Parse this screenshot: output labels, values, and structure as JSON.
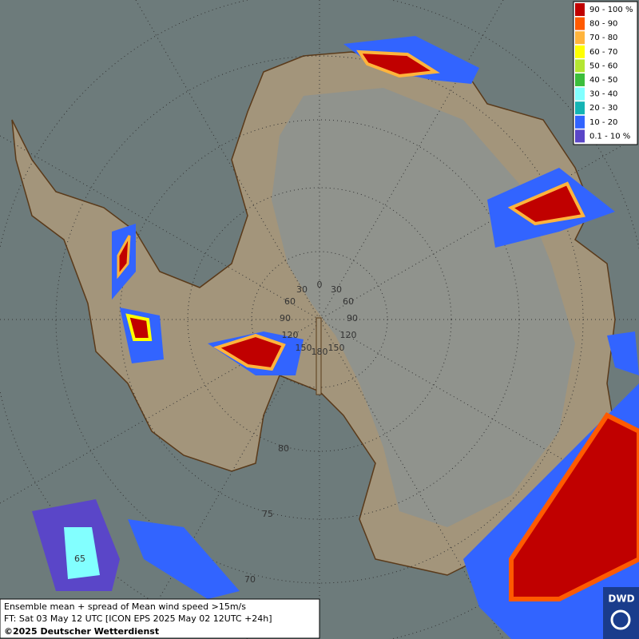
{
  "legend": {
    "items": [
      {
        "label": "90 - 100 %",
        "color": "#c00000"
      },
      {
        "label": "80 - 90",
        "color": "#ff5a00"
      },
      {
        "label": "70 - 80",
        "color": "#ffb43c"
      },
      {
        "label": "60 - 70",
        "color": "#ffff00"
      },
      {
        "label": "50 - 60",
        "color": "#b4e632"
      },
      {
        "label": "40 - 50",
        "color": "#3cbe3c"
      },
      {
        "label": "30 - 40",
        "color": "#82ffff"
      },
      {
        "label": "20 - 30",
        "color": "#14b4b4"
      },
      {
        "label": "10 - 20",
        "color": "#3264ff"
      },
      {
        "label": "0.1 - 10 %",
        "color": "#5a46c8"
      }
    ]
  },
  "graticule": {
    "longitude": [
      "0",
      "30",
      "30",
      "60",
      "60",
      "90",
      "90",
      "120",
      "120",
      "150",
      "150",
      "180"
    ],
    "latitude": [
      "80",
      "75",
      "70",
      "65"
    ]
  },
  "footer": {
    "lines": [
      "Ensemble mean + spread of Mean wind speed >15m/s",
      "FT: Sat 03 May 12 UTC [ICON EPS 2025 May 02 12UTC +24h]",
      "©2025 Deutscher Wetterdienst"
    ]
  },
  "logo": {
    "text": "DWD"
  }
}
